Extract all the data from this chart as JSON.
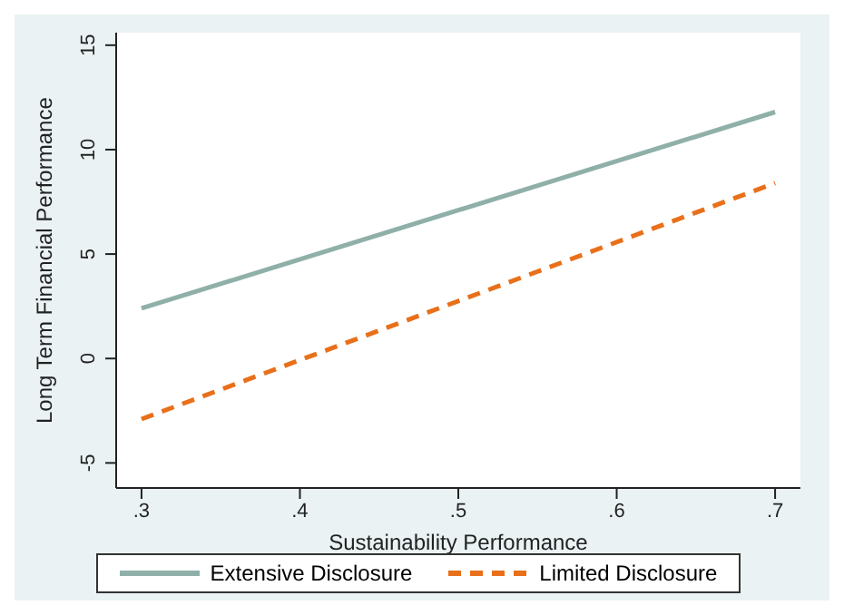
{
  "chart_data": {
    "type": "line",
    "xlabel": "Sustainability Performance",
    "ylabel": "Long Term Financial Performance",
    "xlim": [
      0.284,
      0.716
    ],
    "xticks": [
      {
        "value": 0.3,
        "label": ".3"
      },
      {
        "value": 0.4,
        "label": ".4"
      },
      {
        "value": 0.5,
        "label": ".5"
      },
      {
        "value": 0.6,
        "label": ".6"
      },
      {
        "value": 0.7,
        "label": ".7"
      }
    ],
    "x": [
      0.3,
      0.7
    ],
    "ylim": [
      -6.2,
      15.6
    ],
    "yticks": [
      -5,
      0,
      5,
      10,
      15
    ],
    "grid": false,
    "legend": "bottom",
    "marker": "none",
    "series": [
      {
        "name": "Extensive Disclosure",
        "color": "#8fb0a8",
        "line_style": "solid",
        "values": [
          2.4,
          11.8
        ]
      },
      {
        "name": "Limited Disclosure",
        "color": "#e8701a",
        "line_style": "dashed",
        "values": [
          -2.9,
          8.4
        ]
      }
    ]
  }
}
